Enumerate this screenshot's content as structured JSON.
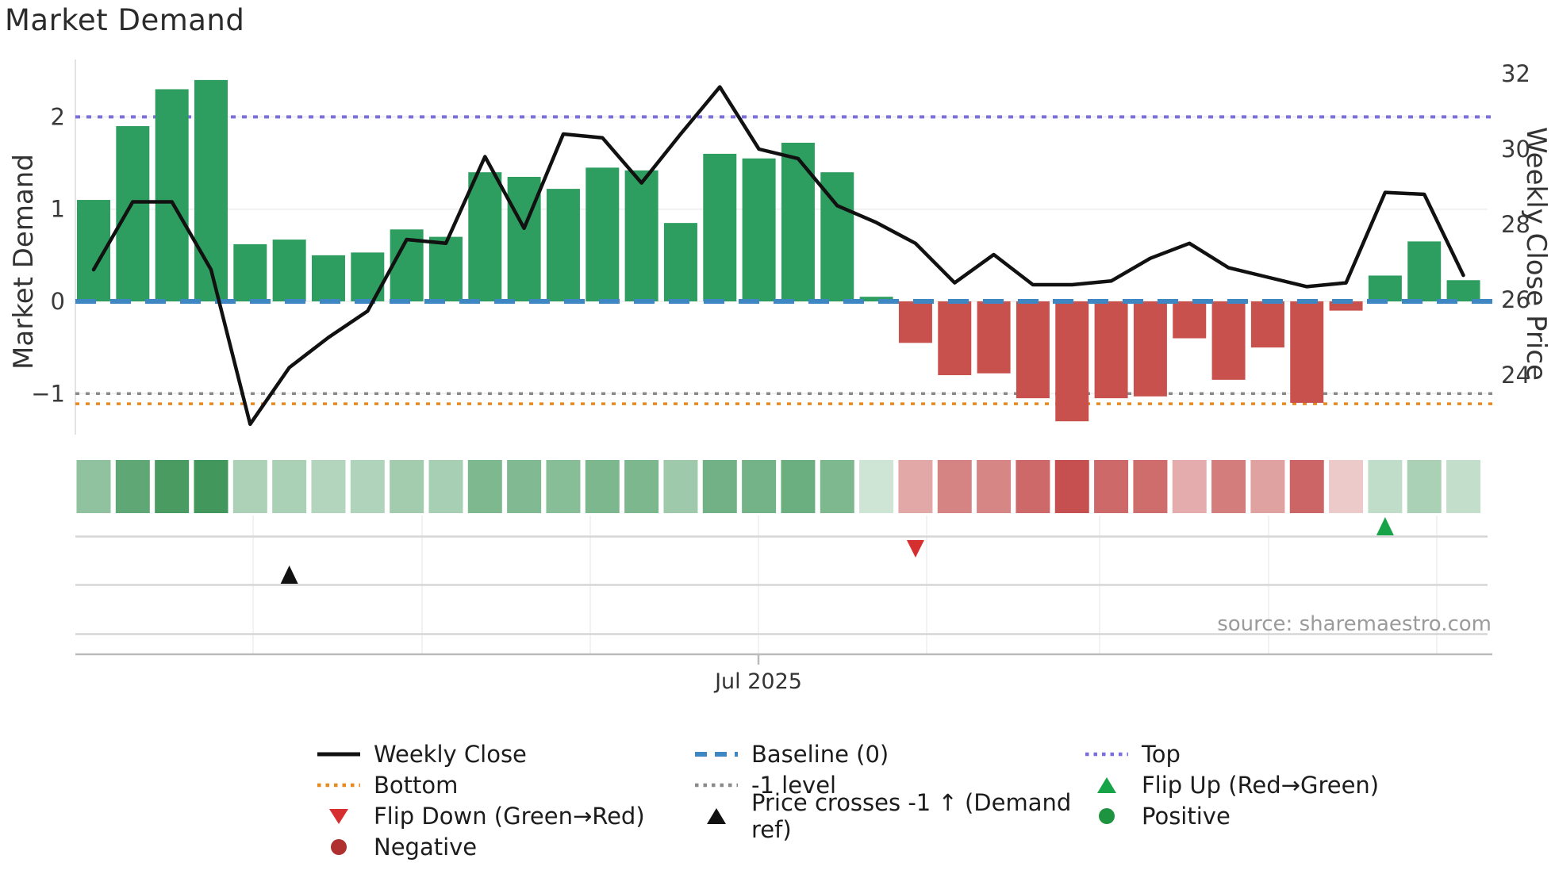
{
  "title": "Market Demand",
  "source": "source: sharemaestro.com",
  "left_axis": {
    "label": "Market Demand",
    "ticks": [
      "2",
      "1",
      "0",
      "−1"
    ],
    "tick_values": [
      2,
      1,
      0,
      -1
    ]
  },
  "right_axis": {
    "label": "Weekly Close Price",
    "ticks": [
      "32",
      "30",
      "28",
      "26",
      "24"
    ],
    "tick_values": [
      32,
      30,
      28,
      26,
      24
    ]
  },
  "x_axis": {
    "tick_label": "Jul 2025"
  },
  "colors": {
    "positive_bar": "#2e9e60",
    "negative_bar": "#c9514d",
    "price_line": "#111111",
    "baseline": "#3f87c2",
    "top": "#7b6fe0",
    "bottom": "#e8891f",
    "minus1_level": "#8a8a8a",
    "flip_up": "#17a448",
    "flip_down": "#d62f2f",
    "price_cross": "#111111",
    "positive_dot": "#1e9440",
    "negative_dot": "#b03030"
  },
  "chart_data": {
    "type": "bar",
    "subtype": "bar+line combo with heat strip and event-marker rows",
    "title": "Market Demand",
    "x_unit": "weekly",
    "x_tick": "Jul 2025",
    "x_tick_bar_index": 17,
    "ylim_left": [
      -1.65,
      2.6
    ],
    "ylim_right": [
      22.0,
      32.75
    ],
    "grid": "faint horizontal gridlines at left-axis ticks",
    "legend_position": "below chart, 3 columns",
    "series": [
      {
        "name": "Market Demand",
        "type": "bar",
        "axis": "left",
        "values": [
          1.1,
          1.9,
          2.3,
          2.4,
          0.62,
          0.67,
          0.5,
          0.53,
          0.78,
          0.7,
          1.4,
          1.35,
          1.22,
          1.45,
          1.42,
          0.85,
          1.6,
          1.55,
          1.72,
          1.4,
          0.05,
          -0.45,
          -0.8,
          -0.78,
          -1.05,
          -1.3,
          -1.05,
          -1.03,
          -0.4,
          -0.85,
          -0.5,
          -1.1,
          -0.1,
          0.28,
          0.65,
          0.23
        ]
      },
      {
        "name": "Weekly Close",
        "type": "line",
        "axis": "right",
        "values": [
          26.8,
          28.6,
          28.6,
          26.8,
          22.7,
          24.2,
          25.0,
          25.7,
          27.6,
          27.5,
          29.8,
          27.9,
          30.4,
          30.3,
          29.1,
          30.4,
          31.65,
          30.0,
          29.75,
          28.5,
          28.05,
          27.5,
          26.45,
          27.2,
          26.4,
          26.4,
          26.5,
          27.1,
          27.5,
          26.85,
          26.6,
          26.35,
          26.45,
          28.85,
          28.8,
          26.65
        ]
      }
    ],
    "reference_lines": [
      {
        "name": "Top",
        "value": 2,
        "color": "#7b6fe0",
        "style": "dotted",
        "axis": "left"
      },
      {
        "name": "Baseline (0)",
        "value": 0,
        "color": "#3f87c2",
        "style": "dashed",
        "axis": "left"
      },
      {
        "name": "-1 level",
        "value": -1,
        "color": "#8a8a8a",
        "style": "dotted",
        "axis": "left"
      },
      {
        "name": "Bottom",
        "value": -1.11,
        "color": "#e8891f",
        "style": "dotted",
        "axis": "left"
      }
    ],
    "markers": [
      {
        "name": "Flip Up (Red→Green)",
        "bar_index": 33,
        "shape": "triangle-up",
        "color": "#17a448",
        "row": 1
      },
      {
        "name": "Flip Down (Green→Red)",
        "bar_index": 21,
        "shape": "triangle-down",
        "color": "#d62f2f",
        "row": 1
      },
      {
        "name": "Price crosses -1 ↑ (Demand ref)",
        "bar_index": 5,
        "shape": "triangle-up",
        "color": "#111111",
        "row": 2
      }
    ],
    "heat_strip": "one cell per week below plot; green/red shade intensity mirrors Market Demand magnitude"
  },
  "legend": {
    "items": [
      {
        "label": "Weekly Close",
        "marker": "line-black",
        "icon": "weekly-close-line"
      },
      {
        "label": "Baseline (0)",
        "marker": "dash-blue",
        "icon": "baseline-dash"
      },
      {
        "label": "Top",
        "marker": "dot-purple",
        "icon": "top-dots"
      },
      {
        "label": "Bottom",
        "marker": "dot-orange",
        "icon": "bottom-dots"
      },
      {
        "label": "-1 level",
        "marker": "dot-gray",
        "icon": "minus1-dots"
      },
      {
        "label": "Flip Up (Red→Green)",
        "marker": "tri-up-green",
        "icon": "flip-up-triangle"
      },
      {
        "label": "Flip Down (Green→Red)",
        "marker": "tri-down-red",
        "icon": "flip-down-triangle"
      },
      {
        "label": "Price crosses -1 ↑ (Demand ref)",
        "marker": "tri-up-black",
        "icon": "price-cross-triangle"
      },
      {
        "label": "Positive",
        "marker": "circle-green",
        "icon": "positive-dot"
      },
      {
        "label": "Negative",
        "marker": "circle-darkred",
        "icon": "negative-dot"
      }
    ]
  }
}
